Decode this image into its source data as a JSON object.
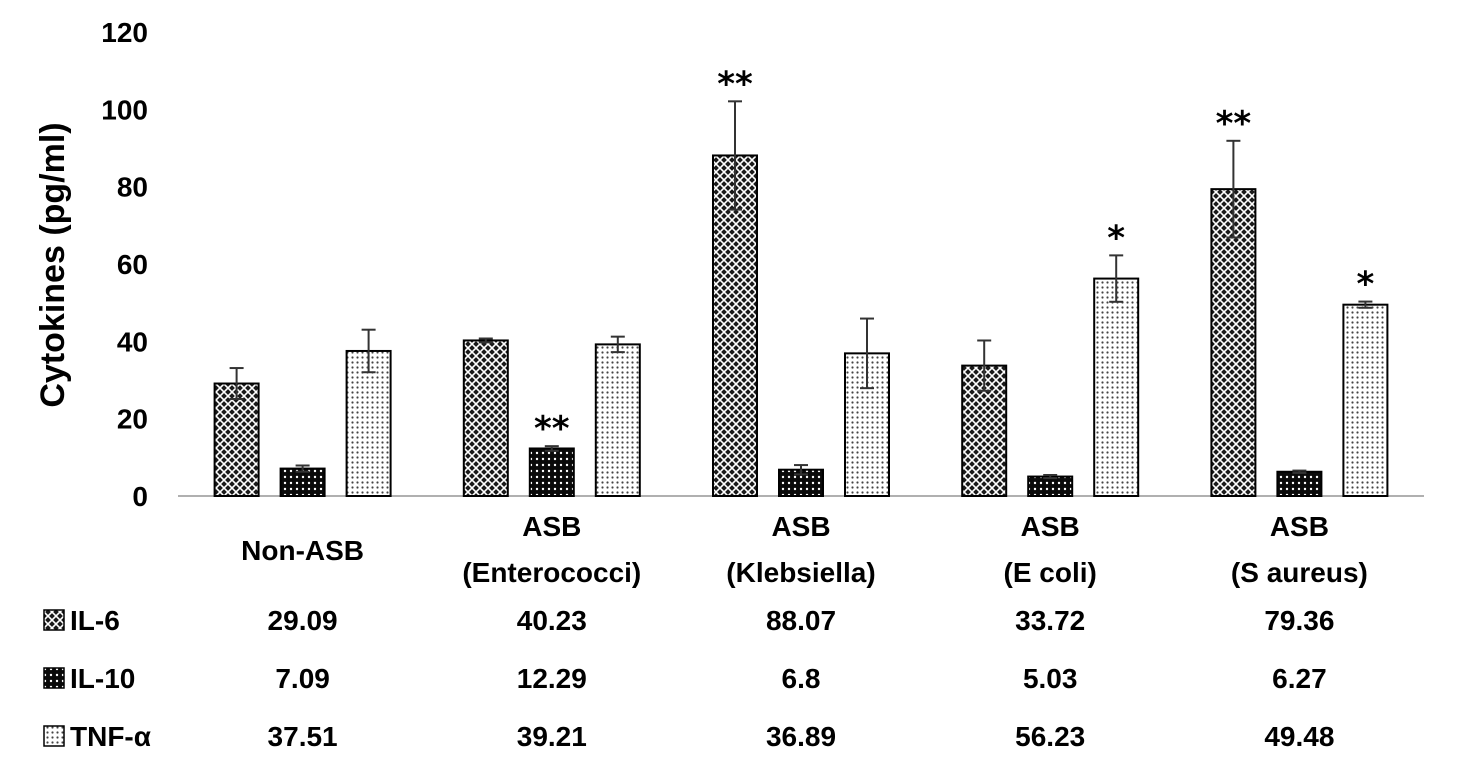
{
  "chart_data": {
    "type": "bar",
    "title": "",
    "xlabel": "",
    "ylabel": "Cytokines (pg/ml)",
    "ylim": [
      0,
      120
    ],
    "yticks": [
      0,
      20,
      40,
      60,
      80,
      100,
      120
    ],
    "grid": false,
    "legend": "data-table-below",
    "categories": [
      [
        "Non-ASB"
      ],
      [
        "ASB",
        "(Enterococci)"
      ],
      [
        "ASB",
        "(Klebsiella)"
      ],
      [
        "ASB",
        "(E coli)"
      ],
      [
        "ASB",
        "(S aureus)"
      ]
    ],
    "series": [
      {
        "name": "IL-6",
        "pattern": "crosshatch",
        "values": [
          29.09,
          40.23,
          88.07,
          33.72,
          79.36
        ],
        "errors": [
          4,
          0.5,
          14,
          6.5,
          12.5
        ],
        "labels": [
          "29.09",
          "40.23",
          "88.07",
          "33.72",
          "79.36"
        ],
        "significance": [
          "",
          "",
          "**",
          "",
          "**"
        ]
      },
      {
        "name": "IL-10",
        "pattern": "dense-dots",
        "values": [
          7.09,
          12.29,
          6.8,
          5.03,
          6.27
        ],
        "errors": [
          0.8,
          0.6,
          1.2,
          0.4,
          0.3
        ],
        "labels": [
          "7.09",
          "12.29",
          "6.8",
          "5.03",
          "6.27"
        ],
        "significance": [
          "",
          "**",
          "",
          "",
          ""
        ]
      },
      {
        "name": "TNF-α",
        "pattern": "light-dots",
        "values": [
          37.51,
          39.21,
          36.89,
          56.23,
          49.48
        ],
        "errors": [
          5.5,
          2,
          9,
          6,
          0.8
        ],
        "labels": [
          "37.51",
          "39.21",
          "36.89",
          "56.23",
          "49.48"
        ],
        "significance": [
          "",
          "",
          "",
          "*",
          "*"
        ]
      }
    ]
  }
}
